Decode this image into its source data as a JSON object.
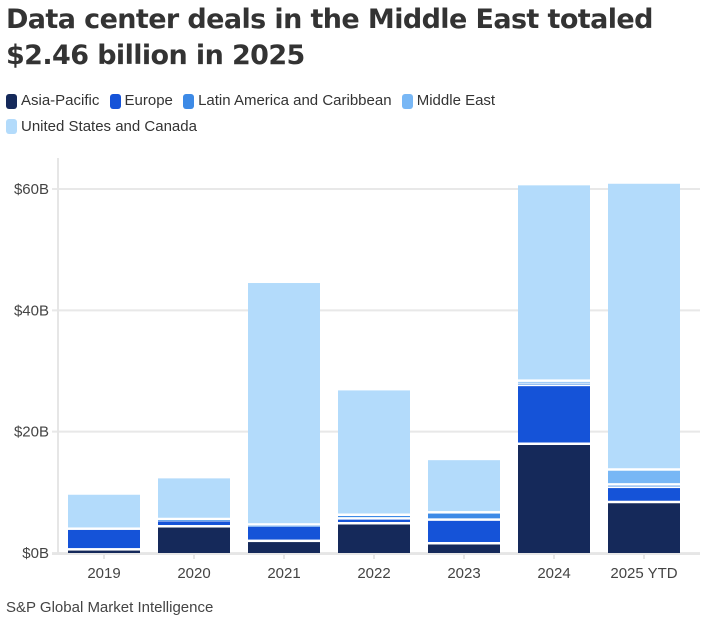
{
  "title": "Data center deals in the Middle East totaled $2.46 billion in 2025",
  "source": "S&P Global Market Intelligence",
  "chart_data": {
    "type": "bar",
    "stacked": true,
    "title": "Data center deals in the Middle East totaled $2.46 billion in 2025",
    "xlabel": "",
    "ylabel": "",
    "ylim": [
      0,
      65
    ],
    "yticks": [
      0,
      20,
      40,
      60
    ],
    "ytick_labels": [
      "$0B",
      "$20B",
      "$40B",
      "$60B"
    ],
    "grid": true,
    "legend_position": "top-left",
    "categories": [
      "2019",
      "2020",
      "2021",
      "2022",
      "2023",
      "2024",
      "2025 YTD"
    ],
    "series": [
      {
        "name": "Asia-Pacific",
        "color": "#15295a",
        "values": [
          0.4,
          4.2,
          1.8,
          4.7,
          1.4,
          17.8,
          8.2
        ]
      },
      {
        "name": "Europe",
        "color": "#1553d8",
        "values": [
          3.4,
          1.0,
          2.5,
          0.8,
          3.9,
          9.7,
          2.5
        ]
      },
      {
        "name": "Latin America and Caribbean",
        "color": "#3d8ae6",
        "values": [
          0.0,
          0.2,
          0.2,
          0.6,
          1.2,
          0.4,
          0.4
        ]
      },
      {
        "name": "Middle East",
        "color": "#78b7f5",
        "values": [
          0.0,
          0.0,
          0.0,
          0.0,
          0.0,
          0.3,
          2.46
        ]
      },
      {
        "name": "United States and Canada",
        "color": "#b3dbfb",
        "values": [
          5.8,
          6.9,
          40.0,
          20.7,
          8.8,
          32.4,
          47.3
        ]
      }
    ],
    "source": "S&P Global Market Intelligence"
  }
}
